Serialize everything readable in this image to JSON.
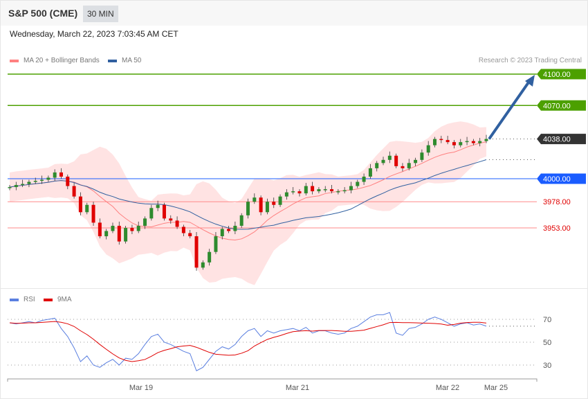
{
  "header": {
    "title": "S&P 500 (CME)",
    "timeframe": "30 MIN",
    "datetime": "Wednesday, March 22, 2023 7:03:45 AM CET"
  },
  "legend": {
    "ma20": "MA 20 + Bollinger Bands",
    "ma50": "MA 50",
    "rsi": "RSI",
    "ma9": "9MA",
    "credit": "Research © 2023 Trading Central"
  },
  "colors": {
    "ma20": "#ff8080",
    "ma50": "#3060a0",
    "band": "#ffe0e0",
    "up": "#2e8b2e",
    "down": "#e00000",
    "resistance": "#4ca000",
    "support": "#ff8a8a",
    "pivot": "#1a5cff",
    "last": "#333333",
    "rsi": "#5a7fe0",
    "rsi_ma": "#e00000"
  },
  "chart_data": [
    {
      "type": "candlestick",
      "title": "S&P 500 (CME) 30 MIN",
      "ylim": [
        3885,
        4110
      ],
      "levels": [
        {
          "value": 4100.0,
          "label": "4100.00",
          "kind": "resistance"
        },
        {
          "value": 4070.0,
          "label": "4070.00",
          "kind": "resistance"
        },
        {
          "value": 4038.0,
          "label": "4038.00",
          "kind": "last"
        },
        {
          "value": 4000.0,
          "label": "4000.00",
          "kind": "pivot"
        },
        {
          "value": 3978.0,
          "label": "3978.00",
          "kind": "support"
        },
        {
          "value": 3953.0,
          "label": "3953.00",
          "kind": "support"
        }
      ],
      "close": [
        3992,
        3994,
        3995,
        3997,
        3998,
        3999,
        4001,
        4006,
        4002,
        3993,
        3983,
        3968,
        3975,
        3958,
        3945,
        3950,
        3955,
        3940,
        3953,
        3950,
        3955,
        3962,
        3972,
        3975,
        3962,
        3960,
        3954,
        3948,
        3945,
        3915,
        3920,
        3930,
        3945,
        3952,
        3950,
        3955,
        3965,
        3978,
        3982,
        3968,
        3978,
        3975,
        3983,
        3987,
        3988,
        3986,
        3993,
        3988,
        3990,
        3990,
        3988,
        3988,
        3989,
        3993,
        3997,
        4002,
        4010,
        4015,
        4018,
        4022,
        4012,
        4010,
        4015,
        4018,
        4025,
        4032,
        4038,
        4037,
        4035,
        4032,
        4035,
        4036,
        4034,
        4036,
        4038
      ],
      "forecast_target": 4100
    },
    {
      "type": "line",
      "title": "RSI",
      "ylim": [
        18,
        85
      ],
      "yticks": [
        70,
        50,
        30
      ],
      "rsi": [
        67,
        66,
        67,
        68,
        67,
        69,
        70,
        71,
        62,
        55,
        45,
        33,
        38,
        30,
        28,
        32,
        35,
        30,
        36,
        35,
        40,
        48,
        55,
        57,
        50,
        48,
        45,
        42,
        40,
        25,
        28,
        35,
        42,
        46,
        44,
        48,
        55,
        60,
        62,
        55,
        60,
        58,
        60,
        61,
        62,
        60,
        63,
        58,
        60,
        60,
        58,
        57,
        58,
        62,
        64,
        68,
        72,
        74,
        74,
        76,
        58,
        56,
        62,
        63,
        66,
        70,
        72,
        70,
        67,
        64,
        66,
        67,
        65,
        66,
        64
      ]
    },
    {
      "type": "axis",
      "xticks": [
        "Mar 19",
        "Mar 21",
        "Mar 22",
        "Mar 25"
      ]
    }
  ]
}
